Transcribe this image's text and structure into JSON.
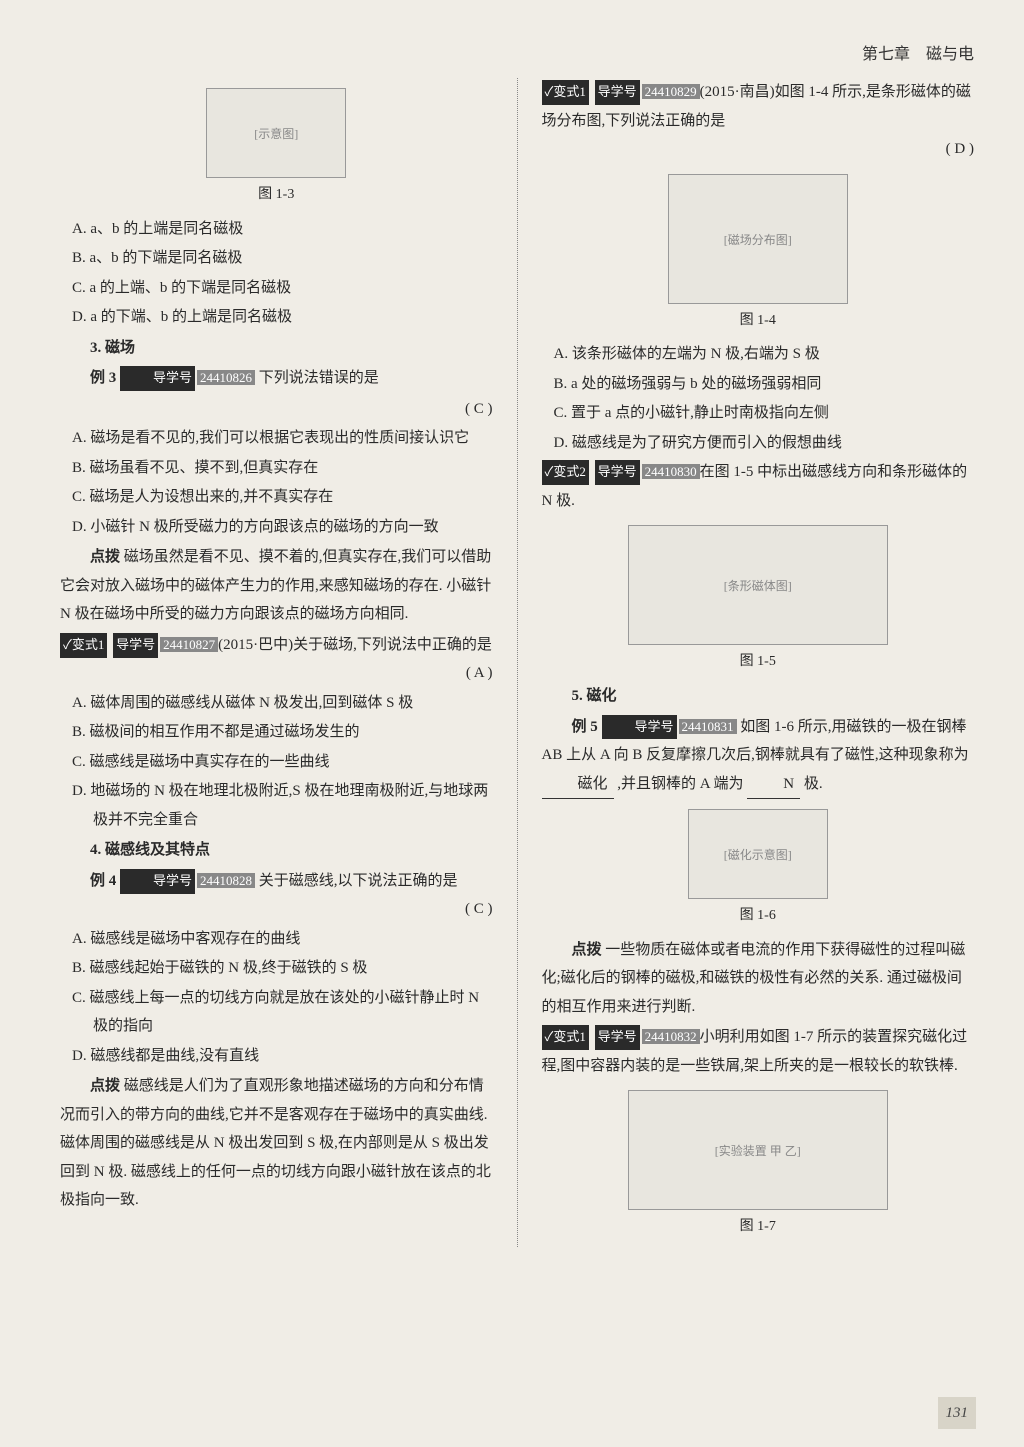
{
  "header": {
    "chapter": "第七章　磁与电"
  },
  "left": {
    "fig1_3": {
      "label": "[示意图]",
      "caption": "图 1-3"
    },
    "q2_options": {
      "A": "A. a、b 的上端是同名磁极",
      "B": "B. a、b 的下端是同名磁极",
      "C": "C. a 的上端、b 的下端是同名磁极",
      "D": "D. a 的下端、b 的上端是同名磁极"
    },
    "sec3_title": "3. 磁场",
    "ex3": {
      "label": "例 3",
      "study": "导学号",
      "num": "24410826",
      "stem": "下列说法错误的是",
      "answer": "( C )",
      "A": "A. 磁场是看不见的,我们可以根据它表现出的性质间接认识它",
      "B": "B. 磁场虽看不见、摸不到,但真实存在",
      "C": "C. 磁场是人为设想出来的,并不真实存在",
      "D": "D. 小磁针 N 极所受磁力的方向跟该点的磁场的方向一致"
    },
    "tip3_label": "点拨",
    "tip3_text": "磁场虽然是看不见、摸不着的,但真实存在,我们可以借助它会对放入磁场中的磁体产生力的作用,来感知磁场的存在. 小磁针 N 极在磁场中所受的磁力方向跟该点的磁场方向相同.",
    "var3_1": {
      "badge": "✓变式1",
      "study": "导学号",
      "num": "24410827",
      "src": "(2015·巴中)",
      "stem": "关于磁场,下列说法中正确的是",
      "answer": "( A )",
      "A": "A. 磁体周围的磁感线从磁体 N 极发出,回到磁体 S 极",
      "B": "B. 磁极间的相互作用不都是通过磁场发生的",
      "C": "C. 磁感线是磁场中真实存在的一些曲线",
      "D": "D. 地磁场的 N 极在地理北极附近,S 极在地理南极附近,与地球两极并不完全重合"
    },
    "sec4_title": "4. 磁感线及其特点",
    "ex4": {
      "label": "例 4",
      "study": "导学号",
      "num": "24410828",
      "stem": "关于磁感线,以下说法正确的是",
      "answer": "( C )",
      "A": "A. 磁感线是磁场中客观存在的曲线",
      "B": "B. 磁感线起始于磁铁的 N 极,终于磁铁的 S 极",
      "C": "C. 磁感线上每一点的切线方向就是放在该处的小磁针静止时 N 极的指向",
      "D": "D. 磁感线都是曲线,没有直线"
    },
    "tip4_label": "点拨",
    "tip4_text": "磁感线是人们为了直观形象地描述磁场的方向和分布情况而引入的带方向的曲线,它并不是客观存在于磁场中的真实曲线. 磁体周围的磁感线是从 N 极出发回到 S 极,在内部则是从 S 极出发回到 N 极. 磁感线上的任何一点的切线方向跟小磁针放在该点的北极指向一致."
  },
  "right": {
    "var4_1": {
      "badge": "✓变式1",
      "study": "导学号",
      "num": "24410829",
      "src": "(2015·南昌)",
      "stem": "如图 1-4 所示,是条形磁体的磁场分布图,下列说法正确的是",
      "answer": "( D )"
    },
    "fig1_4": {
      "label": "[磁场分布图]",
      "caption": "图 1-4"
    },
    "var4_1_opts": {
      "A": "A. 该条形磁体的左端为 N 极,右端为 S 极",
      "B": "B. a 处的磁场强弱与 b 处的磁场强弱相同",
      "C": "C. 置于 a 点的小磁针,静止时南极指向左侧",
      "D": "D. 磁感线是为了研究方便而引入的假想曲线"
    },
    "var4_2": {
      "badge": "✓变式2",
      "study": "导学号",
      "num": "24410830",
      "stem": "在图 1-5 中标出磁感线方向和条形磁体的 N 极."
    },
    "fig1_5": {
      "label": "[条形磁体图]",
      "caption": "图 1-5"
    },
    "sec5_title": "5. 磁化",
    "ex5": {
      "label": "例 5",
      "study": "导学号",
      "num": "24410831",
      "stem1": "如图 1-6 所示,用磁铁的一极在钢棒 AB 上从 A 向 B 反复摩擦几次后,钢棒就具有了磁性,这种现象称为",
      "blank1": "磁化",
      "stem2": ",并且钢棒的 A 端为",
      "blank2": "N",
      "stem3": "极."
    },
    "fig1_6": {
      "label": "[磁化示意图]",
      "caption": "图 1-6"
    },
    "tip5_label": "点拨",
    "tip5_text": "一些物质在磁体或者电流的作用下获得磁性的过程叫磁化;磁化后的钢棒的磁极,和磁铁的极性有必然的关系. 通过磁极间的相互作用来进行判断.",
    "var5_1": {
      "badge": "✓变式1",
      "study": "导学号",
      "num": "24410832",
      "stem": "小明利用如图 1-7 所示的装置探究磁化过程,图中容器内装的是一些铁屑,架上所夹的是一根较长的软铁棒."
    },
    "fig1_7": {
      "label": "[实验装置 甲 乙]",
      "caption": "图 1-7"
    }
  },
  "page_number": "131"
}
